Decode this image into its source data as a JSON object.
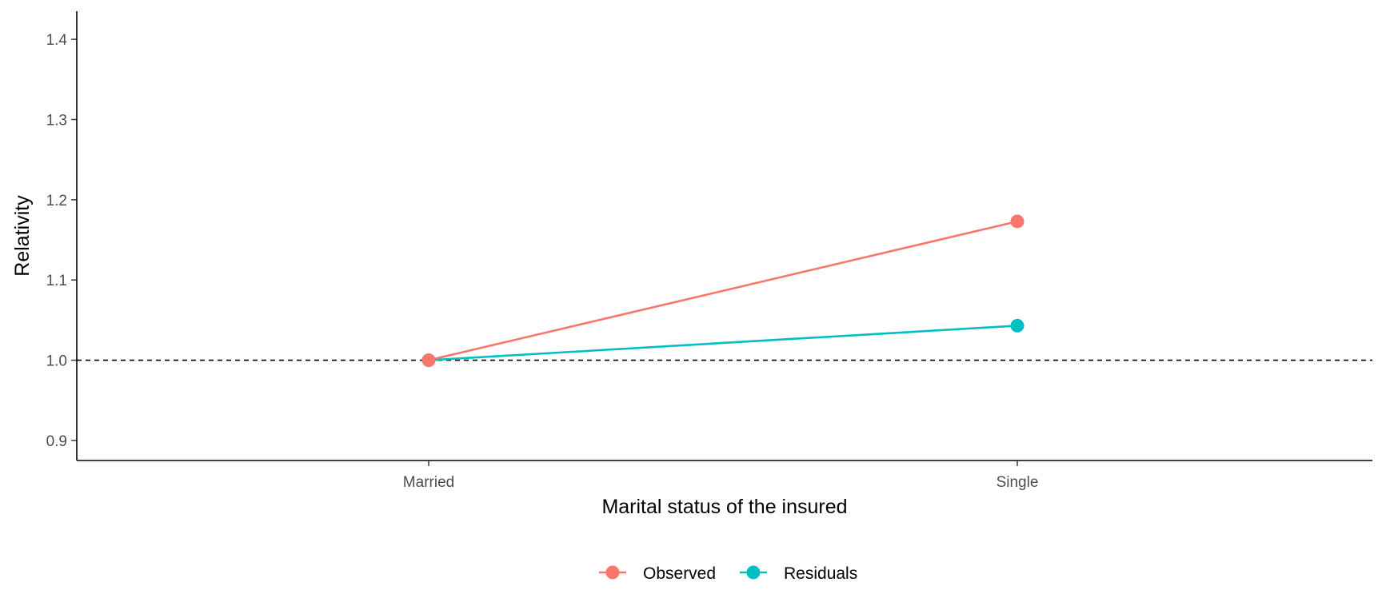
{
  "chart_data": {
    "type": "line",
    "categories": [
      "Married",
      "Single"
    ],
    "series": [
      {
        "name": "Observed",
        "values": [
          1.0,
          1.173
        ],
        "color": "#F8766D"
      },
      {
        "name": "Residuals",
        "values": [
          1.0,
          1.043
        ],
        "color": "#00BFC4"
      }
    ],
    "xlabel": "Marital status of the insured",
    "ylabel": "Relativity",
    "ylim": [
      0.875,
      1.435
    ],
    "yticks": [
      0.9,
      1.0,
      1.1,
      1.2,
      1.3,
      1.4
    ],
    "ytick_labels": [
      "0.9",
      "1.0",
      "1.1",
      "1.2",
      "1.3",
      "1.4"
    ],
    "reference_line": {
      "y": 1.0,
      "style": "dashed",
      "color": "#000000"
    },
    "grid": false,
    "legend": {
      "position": "bottom",
      "orientation": "horizontal"
    }
  }
}
